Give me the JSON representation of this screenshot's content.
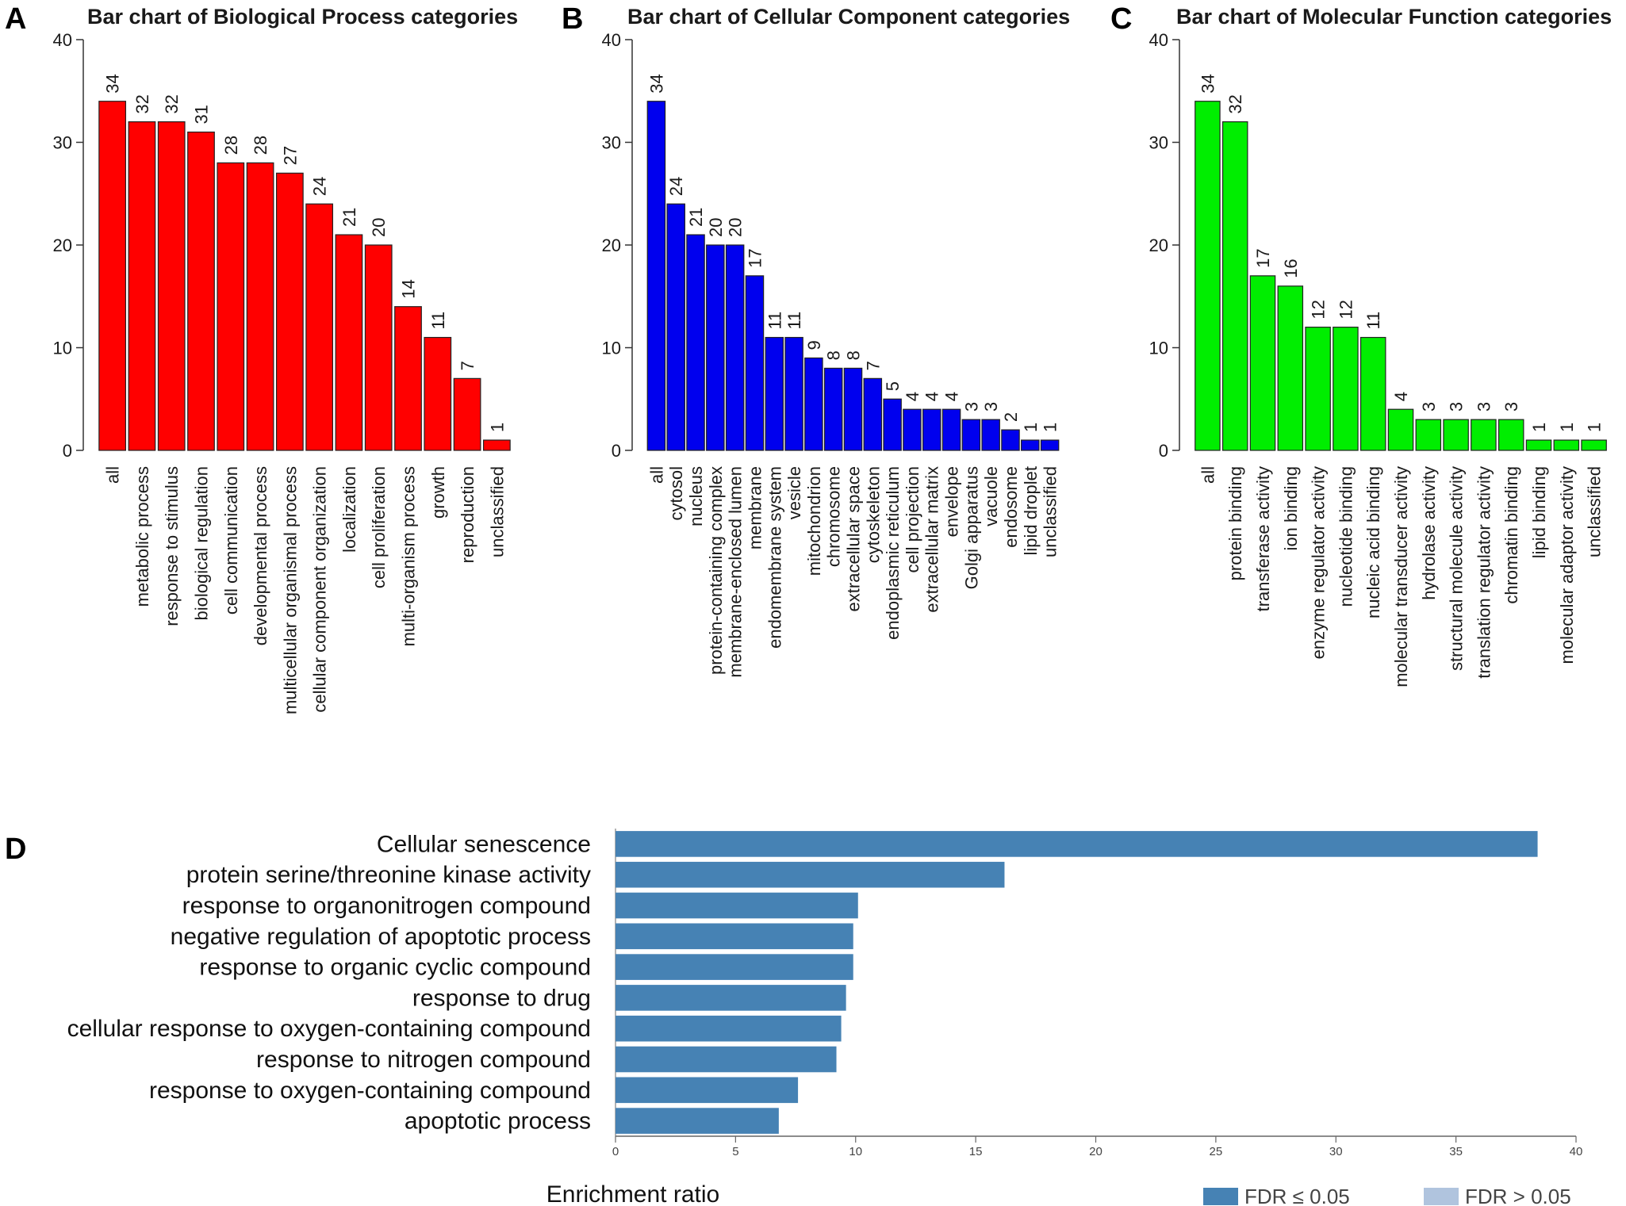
{
  "colors": {
    "panel_a_bar": "#ff0000",
    "panel_b_bar": "#0000ee",
    "panel_c_bar": "#00ee00",
    "panel_d_bar": "#4682b4",
    "panel_d_bar_light": "#b0c4de"
  },
  "chart_data": [
    {
      "id": "A",
      "panel_letter": "A",
      "type": "bar",
      "title": "Bar chart of Biological Process categories",
      "orientation": "vertical",
      "ylim": [
        0,
        40
      ],
      "yticks": [
        0,
        10,
        20,
        30,
        40
      ],
      "categories": [
        "all",
        "metabolic process",
        "response to stimulus",
        "biological regulation",
        "cell communication",
        "developmental process",
        "multicellular organismal process",
        "cellular component organization",
        "localization",
        "cell proliferation",
        "multi-organism process",
        "growth",
        "reproduction",
        "unclassified"
      ],
      "values": [
        34,
        32,
        32,
        31,
        28,
        28,
        27,
        24,
        21,
        20,
        14,
        11,
        7,
        1
      ]
    },
    {
      "id": "B",
      "panel_letter": "B",
      "type": "bar",
      "title": "Bar chart of Cellular Component categories",
      "orientation": "vertical",
      "ylim": [
        0,
        40
      ],
      "yticks": [
        0,
        10,
        20,
        30,
        40
      ],
      "categories": [
        "all",
        "cytosol",
        "nucleus",
        "protein-containing complex",
        "membrane-enclosed lumen",
        "membrane",
        "endomembrane system",
        "vesicle",
        "mitochondrion",
        "chromosome",
        "extracellular space",
        "cytoskeleton",
        "endoplasmic reticulum",
        "cell projection",
        "extracellular matrix",
        "envelope",
        "Golgi apparatus",
        "vacuole",
        "endosome",
        "lipid droplet",
        "unclassified"
      ],
      "values": [
        34,
        24,
        21,
        20,
        20,
        17,
        11,
        11,
        9,
        8,
        8,
        7,
        5,
        4,
        4,
        4,
        3,
        3,
        2,
        1,
        1
      ]
    },
    {
      "id": "C",
      "panel_letter": "C",
      "type": "bar",
      "title": "Bar chart of Molecular Function categories",
      "orientation": "vertical",
      "ylim": [
        0,
        40
      ],
      "yticks": [
        0,
        10,
        20,
        30,
        40
      ],
      "categories": [
        "all",
        "protein binding",
        "transferase activity",
        "ion binding",
        "enzyme regulator activity",
        "nucleotide binding",
        "nucleic acid binding",
        "molecular transducer activity",
        "hydrolase activity",
        "structural molecule activity",
        "translation regulator activity",
        "chromatin binding",
        "lipid binding",
        "molecular adaptor activity",
        "unclassified"
      ],
      "values": [
        34,
        32,
        17,
        16,
        12,
        12,
        11,
        4,
        3,
        3,
        3,
        3,
        1,
        1,
        1
      ]
    },
    {
      "id": "D",
      "panel_letter": "D",
      "type": "bar",
      "orientation": "horizontal",
      "xlabel": "Enrichment ratio",
      "xlim": [
        0,
        40
      ],
      "xticks": [
        0,
        5,
        10,
        15,
        20,
        25,
        30,
        35,
        40
      ],
      "categories": [
        "Cellular senescence",
        "protein serine/threonine kinase activity",
        "response to organonitrogen compound",
        "negative regulation of apoptotic process",
        "response to organic cyclic compound",
        "response to drug",
        "cellular response to oxygen-containing compound",
        "response to nitrogen compound",
        "response to oxygen-containing compound",
        "apoptotic process"
      ],
      "values": [
        38.4,
        16.2,
        10.1,
        9.9,
        9.9,
        9.6,
        9.4,
        9.2,
        7.6,
        6.8
      ],
      "legend": [
        "FDR ≤ 0.05",
        "FDR > 0.05"
      ]
    }
  ]
}
